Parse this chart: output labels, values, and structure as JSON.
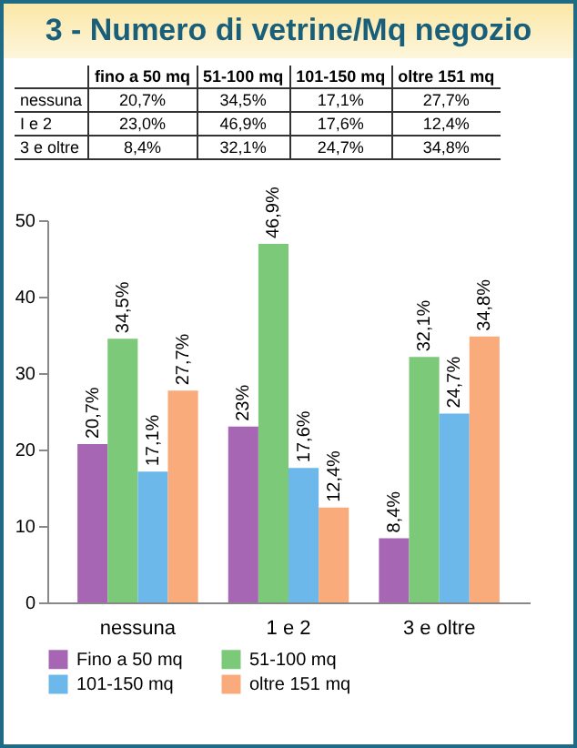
{
  "chart_data": {
    "type": "bar",
    "title": "3 - Numero di vetrine/Mq negozio",
    "categories": [
      "nessuna",
      "1 e 2",
      "3 e oltre"
    ],
    "series": [
      {
        "name": "Fino a 50 mq",
        "color": "#a666b4",
        "values": [
          20.7,
          23.0,
          8.4
        ],
        "value_labels": [
          "20,7%",
          "23%",
          "8,4%"
        ]
      },
      {
        "name": "51-100 mq",
        "color": "#7cc97a",
        "values": [
          34.5,
          46.9,
          32.1
        ],
        "value_labels": [
          "34,5%",
          "46,9%",
          "32,1%"
        ]
      },
      {
        "name": "101-150 mq",
        "color": "#6db8ea",
        "values": [
          17.1,
          17.6,
          24.7
        ],
        "value_labels": [
          "17,1%",
          "17,6%",
          "24,7%"
        ]
      },
      {
        "name": "oltre 151 mq",
        "color": "#f9ab7c",
        "values": [
          27.7,
          12.4,
          34.8
        ],
        "value_labels": [
          "27,7%",
          "12,4%",
          "34,8%"
        ]
      }
    ],
    "ylim": [
      0,
      50
    ],
    "yticks": [
      0,
      10,
      20,
      30,
      40,
      50
    ],
    "grid": false,
    "legend": "bottom",
    "annotations": [
      "fino a 50 mq",
      "51-100 mq",
      "101-150 mq",
      "oltre 151 mq",
      "nessuna",
      "20,7%",
      "34,5%",
      "17,1%",
      "27,7%",
      "I e 2",
      "23,0%",
      "46,9%",
      "17,6%",
      "12,4%",
      "3 e oltre",
      "8,4%",
      "32,1%",
      "24,7%",
      "34,8%"
    ]
  }
}
